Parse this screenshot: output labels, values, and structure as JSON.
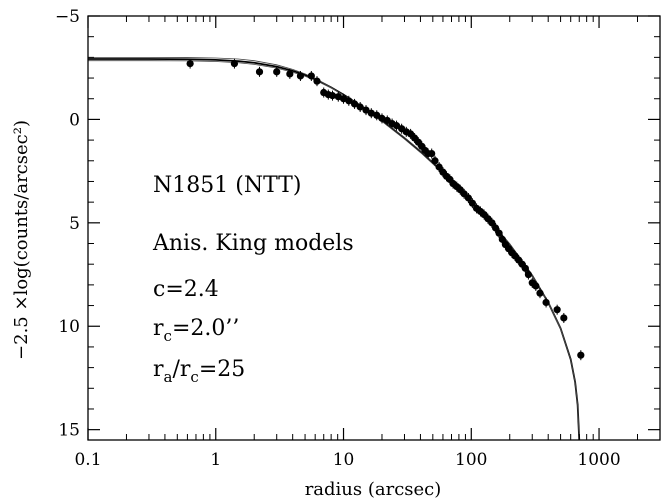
{
  "chart_data": {
    "type": "scatter",
    "x_scale": "log",
    "y_inverted": true,
    "xlim": [
      0.1,
      3000
    ],
    "ylim": [
      15.5,
      -5
    ],
    "xlabel": "radius (arcsec)",
    "ylabel": "−2.5 ×log(counts/arcsec²)",
    "x_ticks": [
      {
        "value": 0.1,
        "label": "0.1"
      },
      {
        "value": 1,
        "label": "1"
      },
      {
        "value": 10,
        "label": "10"
      },
      {
        "value": 100,
        "label": "100"
      },
      {
        "value": 1000,
        "label": "1000"
      }
    ],
    "y_ticks": [
      {
        "value": -5,
        "label": "−5"
      },
      {
        "value": 0,
        "label": "0"
      },
      {
        "value": 5,
        "label": "5"
      },
      {
        "value": 10,
        "label": "10"
      },
      {
        "value": 15,
        "label": "15"
      }
    ],
    "grid": false,
    "annotations": {
      "object": "N1851 (NTT)",
      "model": "Anis. King models",
      "c_text": "c=2.4",
      "rc_main": "r",
      "rc_sub": "c",
      "rc_value": "=2.0’’",
      "ra_main": "r",
      "ra_sub": "a",
      "ra_slash": "/r",
      "ra_sub2": "c",
      "ra_value": "=25"
    },
    "points": [
      [
        0.63,
        -2.7
      ],
      [
        1.4,
        -2.7
      ],
      [
        2.2,
        -2.3
      ],
      [
        3.0,
        -2.3
      ],
      [
        3.8,
        -2.2
      ],
      [
        4.6,
        -2.1
      ],
      [
        5.6,
        -2.1
      ],
      [
        6.2,
        -1.85
      ],
      [
        7.0,
        -1.3
      ],
      [
        7.6,
        -1.2
      ],
      [
        8.2,
        -1.15
      ],
      [
        9.1,
        -1.1
      ],
      [
        10.0,
        -1.0
      ],
      [
        11.0,
        -0.9
      ],
      [
        12.2,
        -0.75
      ],
      [
        13.5,
        -0.6
      ],
      [
        15.0,
        -0.45
      ],
      [
        16.5,
        -0.3
      ],
      [
        18.2,
        -0.2
      ],
      [
        20.0,
        -0.05
      ],
      [
        22.0,
        0.05
      ],
      [
        24.0,
        0.2
      ],
      [
        26.0,
        0.3
      ],
      [
        28.5,
        0.45
      ],
      [
        31.0,
        0.6
      ],
      [
        33.5,
        0.7
      ],
      [
        36.0,
        0.9
      ],
      [
        38.5,
        1.1
      ],
      [
        41.0,
        1.3
      ],
      [
        43.5,
        1.5
      ],
      [
        46.0,
        1.65
      ],
      [
        49.0,
        1.65
      ],
      [
        52.0,
        2.0
      ],
      [
        56.0,
        2.3
      ],
      [
        60.0,
        2.55
      ],
      [
        64.0,
        2.75
      ],
      [
        68.0,
        2.9
      ],
      [
        72.0,
        3.1
      ],
      [
        77.0,
        3.25
      ],
      [
        82.0,
        3.4
      ],
      [
        88.0,
        3.6
      ],
      [
        95.0,
        3.8
      ],
      [
        102.0,
        4.05
      ],
      [
        110.0,
        4.3
      ],
      [
        118.0,
        4.45
      ],
      [
        126.0,
        4.6
      ],
      [
        135.0,
        4.8
      ],
      [
        145.0,
        5.0
      ],
      [
        155.0,
        5.25
      ],
      [
        165.0,
        5.5
      ],
      [
        175.0,
        5.8
      ],
      [
        185.0,
        6.05
      ],
      [
        196.0,
        6.25
      ],
      [
        208.0,
        6.45
      ],
      [
        220.0,
        6.6
      ],
      [
        235.0,
        6.8
      ],
      [
        250.0,
        7.0
      ],
      [
        265.0,
        7.2
      ],
      [
        280.0,
        7.5
      ],
      [
        300.0,
        7.9
      ],
      [
        320.0,
        8.05
      ],
      [
        345.0,
        8.4
      ],
      [
        385.0,
        8.85
      ],
      [
        470.0,
        9.2
      ],
      [
        530.0,
        9.6
      ],
      [
        720.0,
        11.4
      ]
    ],
    "models": [
      {
        "x": [
          0.1,
          0.3,
          0.6,
          1.0,
          1.5,
          2.0,
          3.0,
          4.0,
          5.0,
          6.0,
          8.0,
          10.0,
          15.0,
          20.0,
          30.0,
          40.0,
          60.0,
          80.0,
          100.0,
          150.0,
          200.0,
          300.0,
          400.0,
          500.0,
          600.0,
          650.0,
          680.0,
          700.0
        ],
        "y": [
          -2.92,
          -2.92,
          -2.91,
          -2.88,
          -2.82,
          -2.74,
          -2.55,
          -2.35,
          -2.15,
          -1.95,
          -1.55,
          -1.2,
          -0.5,
          0.05,
          0.9,
          1.55,
          2.55,
          3.35,
          3.95,
          5.15,
          6.05,
          7.55,
          8.85,
          10.1,
          11.6,
          12.7,
          13.8,
          15.5
        ]
      },
      {
        "x": [
          0.1,
          0.3,
          0.6,
          1.0,
          1.5,
          2.0,
          3.0,
          4.0,
          5.0,
          6.0,
          8.0,
          10.0,
          15.0,
          20.0,
          30.0,
          40.0,
          60.0,
          80.0,
          100.0,
          150.0,
          200.0,
          300.0,
          400.0,
          500.0,
          600.0,
          650.0,
          680.0,
          700.0
        ],
        "y": [
          -3.0,
          -3.0,
          -2.99,
          -2.97,
          -2.92,
          -2.84,
          -2.64,
          -2.42,
          -2.2,
          -1.98,
          -1.55,
          -1.17,
          -0.45,
          0.1,
          0.95,
          1.6,
          2.6,
          3.4,
          4.0,
          5.2,
          6.1,
          7.6,
          8.9,
          10.15,
          11.6,
          12.7,
          13.8,
          15.5
        ]
      },
      {
        "x": [
          0.1,
          0.3,
          0.6,
          1.0,
          1.5,
          2.0,
          3.0,
          4.0,
          5.0,
          6.0,
          8.0,
          10.0,
          15.0,
          20.0,
          30.0,
          40.0,
          60.0,
          80.0,
          100.0,
          150.0,
          200.0,
          300.0,
          400.0,
          500.0,
          600.0,
          650.0,
          680.0,
          700.0
        ],
        "y": [
          -2.84,
          -2.84,
          -2.83,
          -2.8,
          -2.74,
          -2.66,
          -2.48,
          -2.28,
          -2.09,
          -1.9,
          -1.52,
          -1.18,
          -0.52,
          0.02,
          0.88,
          1.52,
          2.52,
          3.32,
          3.92,
          5.12,
          6.02,
          7.52,
          8.82,
          10.08,
          11.6,
          12.7,
          13.8,
          15.5
        ]
      }
    ]
  }
}
